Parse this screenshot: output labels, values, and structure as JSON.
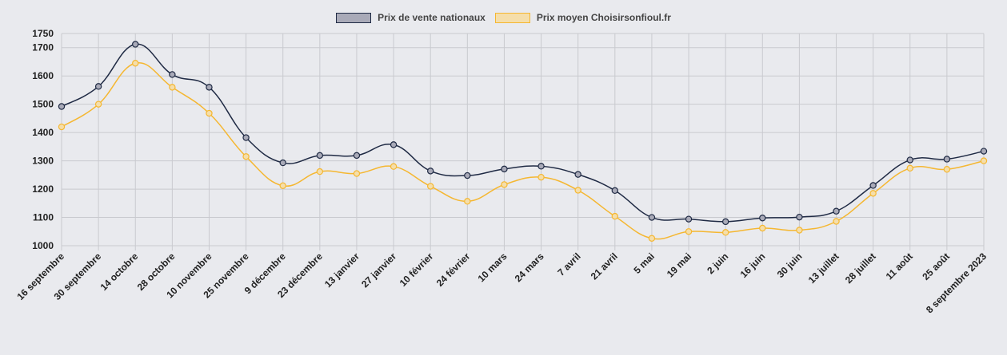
{
  "chart_data": {
    "type": "line",
    "title": "",
    "xlabel": "",
    "ylabel": "",
    "ylim": [
      1000,
      1750
    ],
    "yticks": [
      1000,
      1100,
      1200,
      1300,
      1400,
      1500,
      1600,
      1700,
      1750
    ],
    "grid": true,
    "legend_position": "top-center",
    "categories": [
      "16 septembre",
      "30 septembre",
      "14 octobre",
      "28 octobre",
      "10 novembre",
      "25 novembre",
      "9 décembre",
      "23 décembre",
      "13 janvier",
      "27 janvier",
      "10 février",
      "24 février",
      "10 mars",
      "24 mars",
      "7 avril",
      "21 avril",
      "5 mai",
      "19 mai",
      "2 juin",
      "16 juin",
      "30 juin",
      "13 juillet",
      "28 juillet",
      "11 août",
      "25 août",
      "8 septembre 2023"
    ],
    "series": [
      {
        "name": "Prix de vente nationaux",
        "color": "#1f2a44",
        "fill": "#a9aab8",
        "values": [
          1492,
          1563,
          1712,
          1605,
          1560,
          1382,
          1293,
          1319,
          1319,
          1357,
          1264,
          1248,
          1271,
          1281,
          1252,
          1195,
          1100,
          1094,
          1085,
          1098,
          1101,
          1122,
          1213,
          1303,
          1306,
          1334
        ]
      },
      {
        "name": "Prix moyen Choisirsonfioul.fr",
        "color": "#f5b731",
        "fill": "#f5deaa",
        "values": [
          1420,
          1500,
          1645,
          1560,
          1468,
          1315,
          1212,
          1262,
          1255,
          1280,
          1210,
          1157,
          1216,
          1242,
          1196,
          1104,
          1026,
          1050,
          1047,
          1062,
          1055,
          1086,
          1185,
          1274,
          1270,
          1300
        ]
      }
    ]
  }
}
